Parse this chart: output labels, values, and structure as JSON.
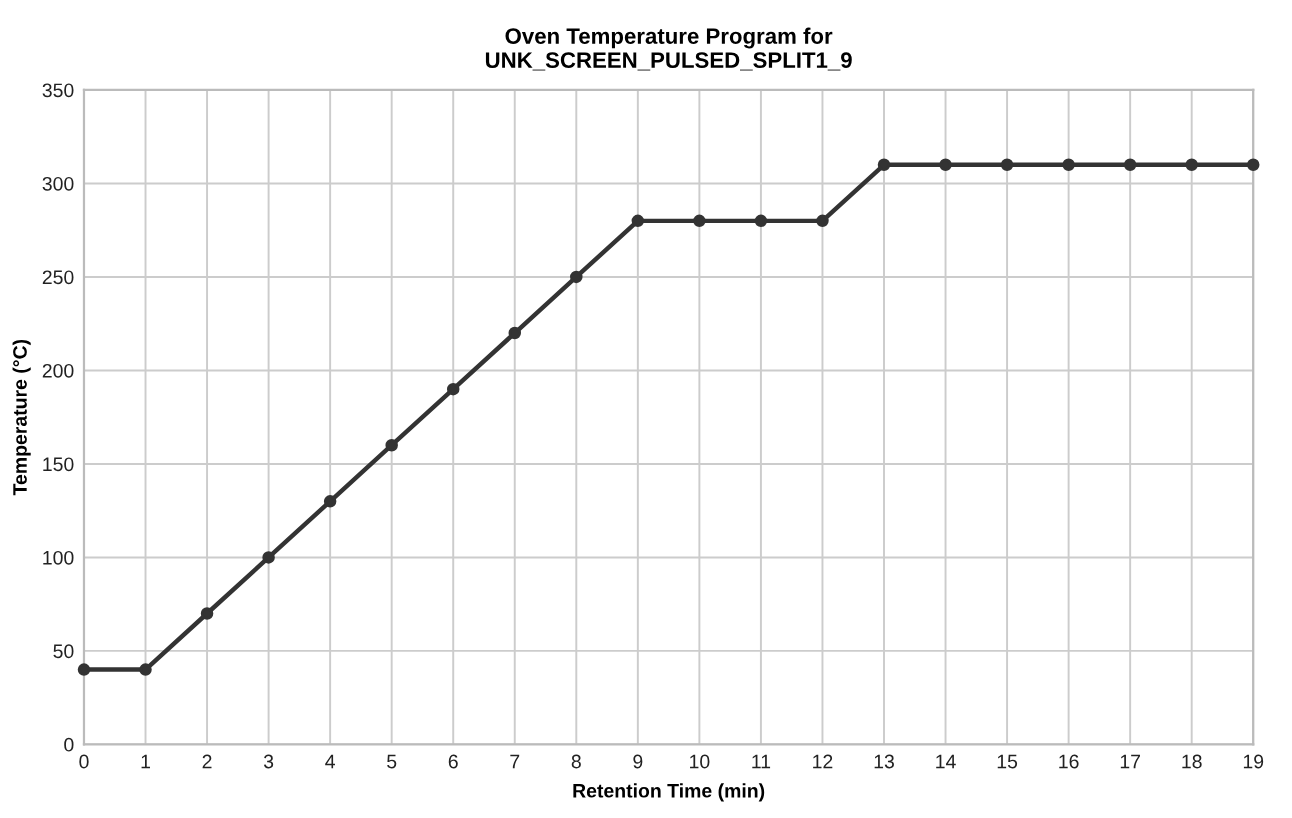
{
  "chart_data": {
    "type": "line",
    "title": "Oven Temperature Program for\nUNK_SCREEN_PULSED_SPLIT1_9",
    "xlabel": "Retention Time (min)",
    "ylabel": "Temperature (°C)",
    "x": [
      0,
      1,
      2,
      3,
      4,
      5,
      6,
      7,
      8,
      9,
      10,
      11,
      12,
      13,
      14,
      15,
      16,
      17,
      18,
      19
    ],
    "series": [
      {
        "color": "#333333",
        "values": [
          40,
          40,
          70,
          100,
          130,
          160,
          190,
          220,
          250,
          280,
          280,
          280,
          280,
          310,
          310,
          310,
          310,
          310,
          310,
          310
        ]
      }
    ],
    "xlim": [
      0,
      19
    ],
    "xticks": [
      0,
      1,
      2,
      3,
      4,
      5,
      6,
      7,
      8,
      9,
      10,
      11,
      12,
      13,
      14,
      15,
      16,
      17,
      18,
      19
    ],
    "ylim": [
      0,
      350
    ],
    "yticks": [
      0,
      50,
      100,
      150,
      200,
      250,
      300,
      350
    ],
    "grid": true,
    "marker": "circle",
    "line_style": "solid"
  }
}
